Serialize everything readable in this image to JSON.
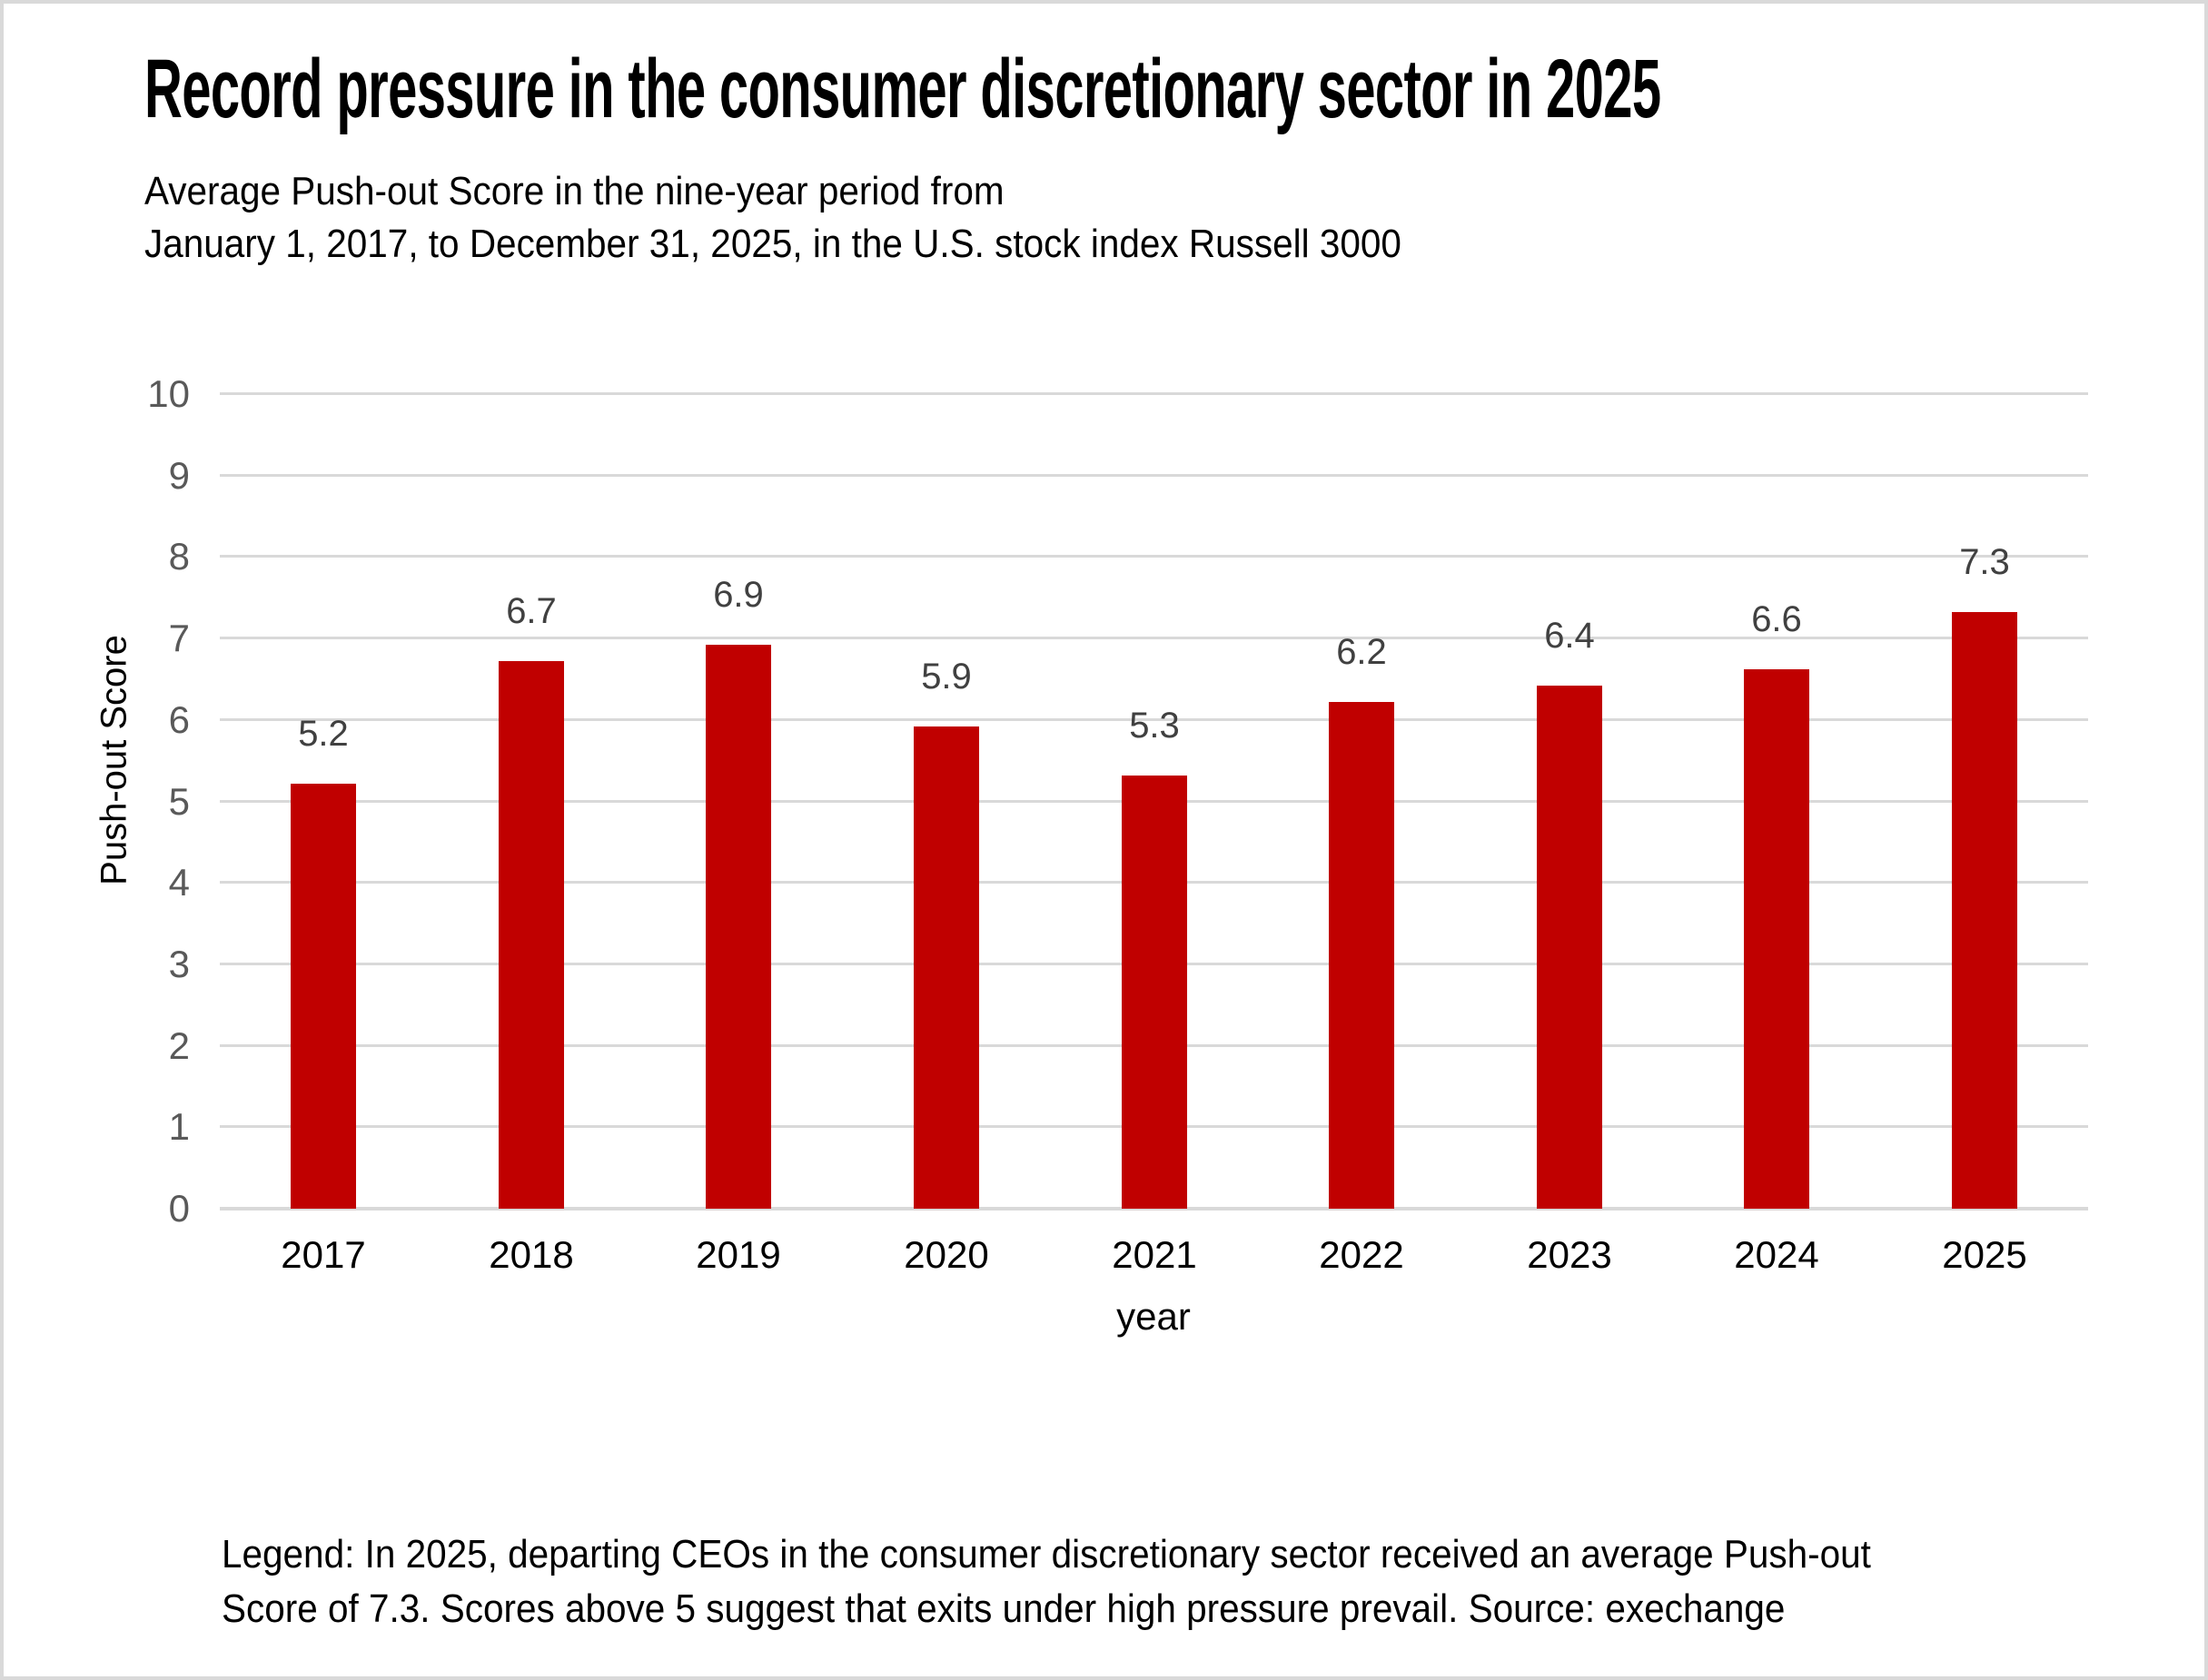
{
  "header": {
    "title": "Record pressure in the consumer discretionary sector in 2025",
    "subtitle_lines": [
      "Average Push-out Score in the nine-year period from",
      "January 1, 2017, to December 31, 2025, in the U.S. stock index Russell 3000"
    ]
  },
  "chart_data": {
    "type": "bar",
    "categories": [
      "2017",
      "2018",
      "2019",
      "2020",
      "2021",
      "2022",
      "2023",
      "2024",
      "2025"
    ],
    "values": [
      5.2,
      6.7,
      6.9,
      5.9,
      5.3,
      6.2,
      6.4,
      6.6,
      7.3
    ],
    "data_labels": [
      "5.2",
      "6.7",
      "6.9",
      "5.9",
      "5.3",
      "6.2",
      "6.4",
      "6.6",
      "7.3"
    ],
    "title": "Record pressure in the consumer discretionary sector in 2025",
    "subtitle": "Average Push-out Score in the nine-year period from January 1, 2017, to December 31, 2025, in the U.S. stock index Russell 3000",
    "xlabel": "year",
    "ylabel": "Push-out Score",
    "ylim": [
      0,
      10
    ],
    "yticks": [
      0,
      1,
      2,
      3,
      4,
      5,
      6,
      7,
      8,
      9,
      10
    ],
    "grid": true,
    "legend_position": "none"
  },
  "footer": {
    "legend_lines": [
      "Legend: In 2025, departing CEOs in the consumer discretionary sector received an average Push-out",
      "Score of 7.3. Scores above 5 suggest that exits under high pressure prevail. Source: exechange"
    ]
  },
  "colors": {
    "background": "#FFFFFF",
    "border": "#D9D9D9",
    "bar": "#C00000",
    "grid": "#D9D9D9",
    "axis_tick": "#595959",
    "data_label": "#404040",
    "text": "#000000"
  }
}
